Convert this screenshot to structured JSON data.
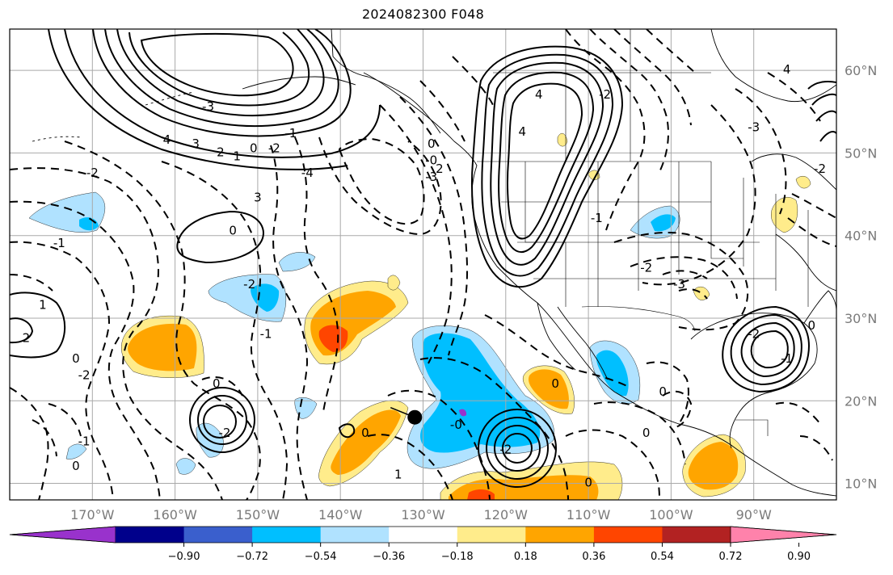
{
  "title": "2024082300 F048",
  "map": {
    "lon_labels": [
      "170°W",
      "160°W",
      "150°W",
      "140°W",
      "130°W",
      "120°W",
      "110°W",
      "100°W",
      "90°W"
    ],
    "lat_labels": [
      "60°N",
      "50°N",
      "40°N",
      "30°N",
      "20°N",
      "10°N"
    ],
    "lon_range": [
      -180,
      -80
    ],
    "lat_range": [
      8,
      65
    ],
    "gridlines": true,
    "marker": {
      "lon": -131,
      "lat": 18
    }
  },
  "contour_labels": [
    {
      "text": "4",
      "lon": -161,
      "lat": 51.5
    },
    {
      "text": "3",
      "lon": -157.5,
      "lat": 51
    },
    {
      "text": "2",
      "lon": -154.5,
      "lat": 50
    },
    {
      "text": "1",
      "lon": -152.5,
      "lat": 49.5
    },
    {
      "text": "0",
      "lon": -150.5,
      "lat": 50.5
    },
    {
      "text": "-1",
      "lon": -146,
      "lat": 52.3
    },
    {
      "text": "-2",
      "lon": -148,
      "lat": 50.5
    },
    {
      "text": "-3",
      "lon": -156,
      "lat": 55.5
    },
    {
      "text": "3",
      "lon": -150,
      "lat": 44.5
    },
    {
      "text": "-4",
      "lon": -144,
      "lat": 47.5
    },
    {
      "text": "0",
      "lon": -153,
      "lat": 40.5
    },
    {
      "text": "-2",
      "lon": -170,
      "lat": 47.5
    },
    {
      "text": "-1",
      "lon": -174,
      "lat": 39
    },
    {
      "text": "1",
      "lon": -176,
      "lat": 31.5
    },
    {
      "text": "2",
      "lon": -178,
      "lat": 27.5
    },
    {
      "text": "0",
      "lon": -172,
      "lat": 25
    },
    {
      "text": "-2",
      "lon": -171,
      "lat": 23
    },
    {
      "text": "-1",
      "lon": -171,
      "lat": 15
    },
    {
      "text": "0",
      "lon": -172,
      "lat": 12
    },
    {
      "text": "-2",
      "lon": -154,
      "lat": 16
    },
    {
      "text": "0",
      "lon": -155,
      "lat": 22
    },
    {
      "text": "-2",
      "lon": -151,
      "lat": 34
    },
    {
      "text": "-1",
      "lon": -149,
      "lat": 28
    },
    {
      "text": "0",
      "lon": -137,
      "lat": 16
    },
    {
      "text": "-0",
      "lon": -126,
      "lat": 17
    },
    {
      "text": "1",
      "lon": -133,
      "lat": 11
    },
    {
      "text": "-2",
      "lon": -120,
      "lat": 14
    },
    {
      "text": "0",
      "lon": -114,
      "lat": 22
    },
    {
      "text": "0",
      "lon": -103,
      "lat": 16
    },
    {
      "text": "0",
      "lon": -110,
      "lat": 10
    },
    {
      "text": "0",
      "lon": -101,
      "lat": 21
    },
    {
      "text": "-2",
      "lon": -103,
      "lat": 36
    },
    {
      "text": "-3",
      "lon": -99,
      "lat": 34
    },
    {
      "text": "-2",
      "lon": -90,
      "lat": 28
    },
    {
      "text": "-1",
      "lon": -86,
      "lat": 25
    },
    {
      "text": "0",
      "lon": -83,
      "lat": 29
    },
    {
      "text": "-0",
      "lon": -129,
      "lat": 49
    },
    {
      "text": "4",
      "lon": -116,
      "lat": 57
    },
    {
      "text": "-2",
      "lon": -108,
      "lat": 57
    },
    {
      "text": "-3",
      "lon": -90,
      "lat": 53
    },
    {
      "text": "4",
      "lon": -86,
      "lat": 60
    },
    {
      "text": "-2",
      "lon": -82,
      "lat": 48
    },
    {
      "text": "-1",
      "lon": -109,
      "lat": 42
    },
    {
      "text": "4",
      "lon": -118,
      "lat": 52.5
    },
    {
      "text": "0",
      "lon": -129,
      "lat": 51
    },
    {
      "text": "-3",
      "lon": -129,
      "lat": 47
    },
    {
      "text": "2",
      "lon": -128,
      "lat": 48
    }
  ],
  "colorbar": {
    "colors": [
      "#9932CC",
      "#00008B",
      "#3A5FCD",
      "#00BFFF",
      "#B0E2FF",
      "#FFFFFF",
      "#FFEC8B",
      "#FFA500",
      "#FF4500",
      "#B22222",
      "#FF82AB"
    ],
    "tick_labels": [
      "−0.90",
      "−0.72",
      "−0.54",
      "−0.36",
      "−0.18",
      "0.18",
      "0.36",
      "0.54",
      "0.72",
      "0.90"
    ]
  }
}
